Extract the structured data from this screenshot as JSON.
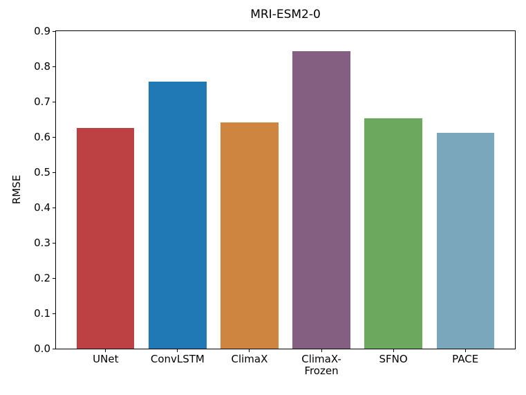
{
  "chart_data": {
    "type": "bar",
    "title": "MRI-ESM2-0",
    "xlabel": "",
    "ylabel": "RMSE",
    "categories": [
      "UNet",
      "ConvLSTM",
      "ClimaX",
      "ClimaX-\nFrozen",
      "SFNO",
      "PACE"
    ],
    "values": [
      0.625,
      0.756,
      0.641,
      0.843,
      0.653,
      0.612
    ],
    "bar_colors": [
      "#bd4142",
      "#2078b4",
      "#cd8540",
      "#855f82",
      "#6ca95e",
      "#7ba7bd"
    ],
    "ylim": [
      0.0,
      0.9
    ],
    "yticks": [
      "0.0",
      "0.1",
      "0.2",
      "0.3",
      "0.4",
      "0.5",
      "0.6",
      "0.7",
      "0.8",
      "0.9"
    ],
    "grid": false,
    "legend_shown": false,
    "axis_color": "#000000",
    "background_color": "#ffffff"
  }
}
